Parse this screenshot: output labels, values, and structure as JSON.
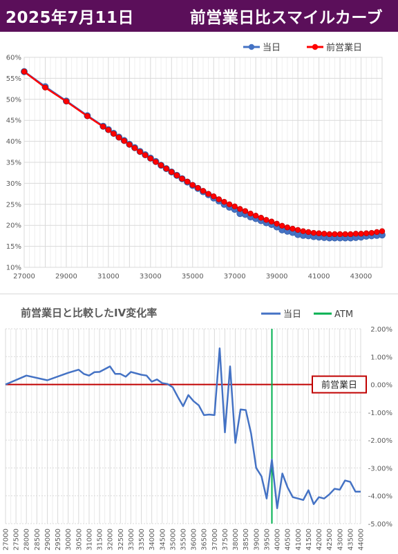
{
  "header": {
    "date": "2025年7月11日",
    "title": "前営業日比スマイルカーブ"
  },
  "colors": {
    "header_bg": "#5b0f5a",
    "today": "#4472c4",
    "prev": "#ff0000",
    "atm": "#00b050",
    "zero": "#c00000",
    "diff": "#4472c4"
  },
  "chart_data": [
    {
      "type": "line",
      "title": "",
      "legend_position": "top-right",
      "grid": true,
      "xlim": [
        27000,
        44000
      ],
      "ylim": [
        10,
        60
      ],
      "x_ticks": [
        "27000",
        "29000",
        "31000",
        "33000",
        "35000",
        "37000",
        "39000",
        "41000",
        "43000"
      ],
      "y_ticks": [
        "10%",
        "15%",
        "20%",
        "25%",
        "30%",
        "35%",
        "40%",
        "45%",
        "50%",
        "55%",
        "60%"
      ],
      "series": [
        {
          "name": "当日",
          "x": [
            27000,
            28000,
            29000,
            30000,
            30750,
            31000,
            31250,
            31500,
            31750,
            32000,
            32250,
            32500,
            32750,
            33000,
            33250,
            33500,
            33750,
            34000,
            34250,
            34500,
            34750,
            35000,
            35250,
            35500,
            35750,
            36000,
            36250,
            36500,
            36750,
            37000,
            37250,
            37500,
            37750,
            38000,
            38250,
            38500,
            38750,
            39000,
            39250,
            39500,
            39750,
            40000,
            40250,
            40500,
            40750,
            41000,
            41250,
            41500,
            41750,
            42000,
            42250,
            42500,
            42750,
            43000,
            43250,
            43500,
            43750,
            44000
          ],
          "values": [
            56.6,
            53.0,
            49.6,
            46.1,
            43.6,
            42.8,
            41.9,
            41.0,
            40.2,
            39.3,
            38.5,
            37.6,
            36.8,
            36.0,
            35.2,
            34.3,
            33.5,
            32.7,
            31.9,
            31.1,
            30.3,
            29.5,
            28.8,
            28.0,
            27.3,
            26.5,
            25.8,
            25.0,
            24.3,
            23.8,
            22.8,
            22.6,
            22.0,
            21.6,
            21.1,
            20.6,
            20.2,
            19.6,
            18.9,
            18.6,
            18.3,
            17.8,
            17.6,
            17.5,
            17.3,
            17.2,
            17.1,
            17.0,
            17.0,
            17.0,
            17.0,
            17.0,
            17.1,
            17.2,
            17.4,
            17.5,
            17.6,
            17.7
          ]
        },
        {
          "name": "前営業日",
          "x": [
            27000,
            28000,
            29000,
            30000,
            30750,
            31000,
            31250,
            31500,
            31750,
            32000,
            32250,
            32500,
            32750,
            33000,
            33250,
            33500,
            33750,
            34000,
            34250,
            34500,
            34750,
            35000,
            35250,
            35500,
            35750,
            36000,
            36250,
            36500,
            36750,
            37000,
            37250,
            37500,
            37750,
            38000,
            38250,
            38500,
            38750,
            39000,
            39250,
            39500,
            39750,
            40000,
            40250,
            40500,
            40750,
            41000,
            41250,
            41500,
            41750,
            42000,
            42250,
            42500,
            42750,
            43000,
            43250,
            43500,
            43750,
            44000
          ],
          "values": [
            56.6,
            52.8,
            49.5,
            46.0,
            43.5,
            42.7,
            41.8,
            40.9,
            40.1,
            39.2,
            38.4,
            37.5,
            36.7,
            35.9,
            35.1,
            34.3,
            33.5,
            32.7,
            31.9,
            31.1,
            30.4,
            29.6,
            28.9,
            28.2,
            27.5,
            26.9,
            26.2,
            25.6,
            25.0,
            24.5,
            23.9,
            23.4,
            22.8,
            22.3,
            21.8,
            21.3,
            20.9,
            20.4,
            19.9,
            19.5,
            19.2,
            18.9,
            18.6,
            18.4,
            18.2,
            18.1,
            18.0,
            17.9,
            17.9,
            17.9,
            17.9,
            17.9,
            18.0,
            18.0,
            18.1,
            18.2,
            18.4,
            18.6
          ]
        }
      ]
    },
    {
      "type": "line",
      "title": "前営業日と比較したIV変化率",
      "legend_position": "top-right",
      "grid": true,
      "xlim": [
        27000,
        44000
      ],
      "ylim": [
        -5,
        2
      ],
      "atm_strike": 39750,
      "zero_label": "前営業日",
      "x_ticks": [
        "27000",
        "27500",
        "28000",
        "28500",
        "29000",
        "29500",
        "30000",
        "30500",
        "31000",
        "31500",
        "32000",
        "32500",
        "33000",
        "33500",
        "34000",
        "34500",
        "35000",
        "35500",
        "36000",
        "36500",
        "37000",
        "37500",
        "38000",
        "38500",
        "39000",
        "39500",
        "40000",
        "40500",
        "41000",
        "41500",
        "42000",
        "42500",
        "43000",
        "43500",
        "44000"
      ],
      "y_ticks": [
        "2.00%",
        "1.00%",
        "0.00%",
        "-1.00%",
        "-2.00%",
        "-3.00%",
        "-4.00%",
        "-5.00%"
      ],
      "series": [
        {
          "name": "当日",
          "x": [
            27000,
            28000,
            29000,
            30000,
            30500,
            30750,
            31000,
            31250,
            31500,
            32000,
            32250,
            32500,
            32750,
            33000,
            33250,
            33500,
            33750,
            34000,
            34250,
            34500,
            34750,
            35000,
            35250,
            35500,
            35750,
            36000,
            36250,
            36500,
            36750,
            37000,
            37250,
            37500,
            37750,
            38000,
            38250,
            38500,
            38750,
            39000,
            39250,
            39500,
            39750,
            40000,
            40250,
            40500,
            40750,
            41000,
            41250,
            41500,
            41750,
            42000,
            42250,
            42500,
            42750,
            43000,
            43250,
            43500,
            43750,
            44000
          ],
          "values": [
            0,
            0.32,
            0.15,
            0.42,
            0.53,
            0.38,
            0.32,
            0.44,
            0.45,
            0.65,
            0.38,
            0.38,
            0.28,
            0.45,
            0.4,
            0.35,
            0.32,
            0.1,
            0.18,
            0.05,
            0.02,
            -0.1,
            -0.45,
            -0.78,
            -0.38,
            -0.6,
            -0.75,
            -1.1,
            -1.08,
            -1.1,
            1.3,
            -1.72,
            0.65,
            -2.1,
            -0.9,
            -0.92,
            -1.75,
            -3.0,
            -3.3,
            -4.1,
            -2.7,
            -4.45,
            -3.2,
            -3.7,
            -4.05,
            -4.1,
            -4.15,
            -3.8,
            -4.3,
            -4.05,
            -4.1,
            -3.95,
            -3.75,
            -3.78,
            -3.45,
            -3.5,
            -3.85,
            -3.85
          ]
        },
        {
          "name": "ATM"
        }
      ]
    }
  ]
}
